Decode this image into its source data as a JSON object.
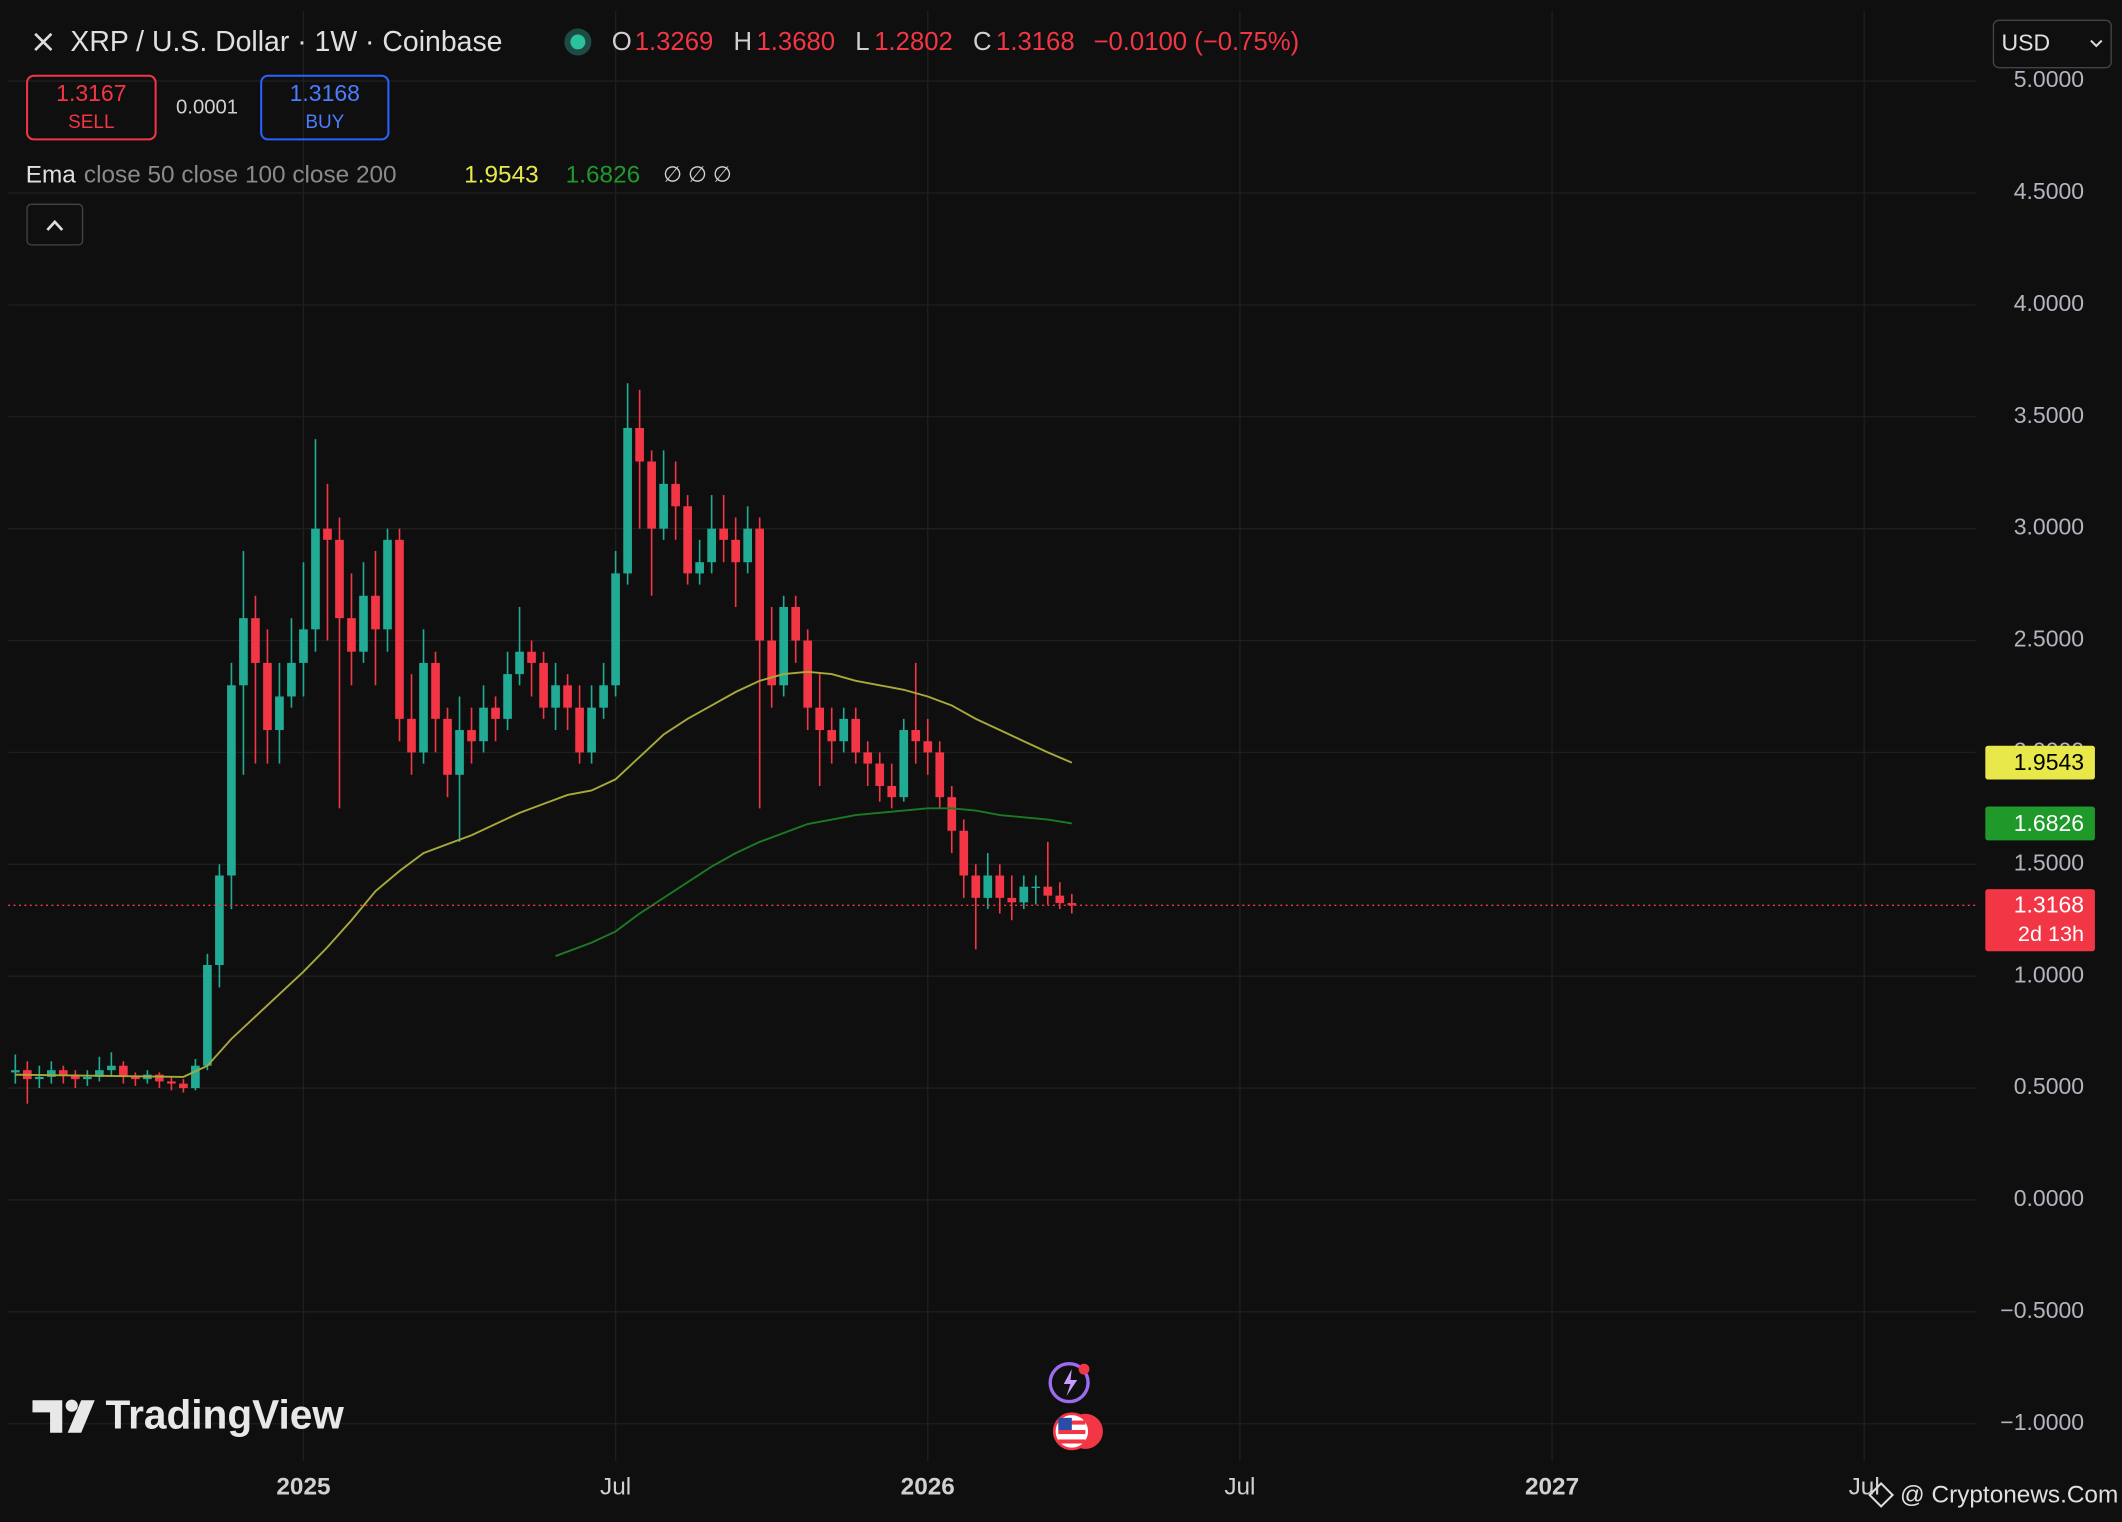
{
  "header": {
    "symbol": "XRP / U.S. Dollar · 1W · Coinbase",
    "ohlc": [
      {
        "label": "O",
        "value": "1.3269"
      },
      {
        "label": "H",
        "value": "1.3680"
      },
      {
        "label": "L",
        "value": "1.2802"
      },
      {
        "label": "C",
        "value": "1.3168"
      }
    ],
    "change": "−0.0100 (−0.75%)"
  },
  "trade": {
    "sell_price": "1.3167",
    "sell": "SELL",
    "spread": "0.0001",
    "buy_price": "1.3168",
    "buy": "BUY"
  },
  "currency": "USD",
  "indicator": {
    "name": "Ema",
    "params": "close 50 close 100 close 200",
    "empty": "∅ ∅ ∅"
  },
  "countdown": "2d 13h",
  "brand": "TradingView",
  "watermark": "@ Cryptonews.Com",
  "chart_data": {
    "type": "candlestick",
    "up_color": "#22ab94",
    "down_color": "#f23645",
    "x": [
      -24,
      -23,
      -22,
      -21,
      -20,
      -19,
      -18,
      -17,
      -16,
      -15,
      -14,
      -13,
      -12,
      -11,
      -10,
      -9,
      -8,
      -7,
      -6,
      -5,
      -4,
      -3,
      -2,
      -1,
      0,
      1,
      2,
      3,
      4,
      5,
      6,
      7,
      8,
      9,
      10,
      11,
      12,
      13,
      14,
      15,
      16,
      17,
      18,
      19,
      20,
      21,
      22,
      23,
      24,
      25,
      26,
      27,
      28,
      29,
      30,
      31,
      32,
      33,
      34,
      35,
      36,
      37,
      38,
      39,
      40,
      41,
      42,
      43,
      44,
      45,
      46,
      47,
      48,
      49,
      50,
      51,
      52,
      53,
      54,
      55,
      56,
      57,
      58,
      59,
      60,
      61,
      62,
      63,
      64
    ],
    "open": [
      0.57,
      0.58,
      0.54,
      0.55,
      0.58,
      0.56,
      0.54,
      0.55,
      0.58,
      0.6,
      0.55,
      0.54,
      0.56,
      0.53,
      0.52,
      0.5,
      0.6,
      1.05,
      1.45,
      2.3,
      2.6,
      2.4,
      2.1,
      2.25,
      2.4,
      2.55,
      3.0,
      2.95,
      2.6,
      2.45,
      2.7,
      2.55,
      2.95,
      2.15,
      2.0,
      2.4,
      2.15,
      1.9,
      2.1,
      2.05,
      2.2,
      2.15,
      2.35,
      2.45,
      2.4,
      2.2,
      2.3,
      2.2,
      2.0,
      2.2,
      2.3,
      2.8,
      3.45,
      3.3,
      3.0,
      3.2,
      3.1,
      2.8,
      2.85,
      3.0,
      2.95,
      2.85,
      3.0,
      2.5,
      2.3,
      2.65,
      2.5,
      2.2,
      2.1,
      2.05,
      2.15,
      2.0,
      1.95,
      1.85,
      1.8,
      2.1,
      2.05,
      2.0,
      1.8,
      1.65,
      1.45,
      1.35,
      1.45,
      1.35,
      1.33,
      1.4,
      1.4,
      1.36,
      1.3269
    ],
    "high": [
      0.65,
      0.62,
      0.6,
      0.62,
      0.6,
      0.58,
      0.58,
      0.64,
      0.66,
      0.62,
      0.57,
      0.58,
      0.57,
      0.55,
      0.54,
      0.63,
      1.1,
      1.5,
      2.4,
      2.9,
      2.7,
      2.55,
      2.4,
      2.6,
      2.85,
      3.4,
      3.2,
      3.05,
      2.8,
      2.85,
      2.9,
      3.0,
      3.0,
      2.35,
      2.55,
      2.45,
      2.2,
      2.25,
      2.2,
      2.3,
      2.25,
      2.45,
      2.65,
      2.5,
      2.45,
      2.4,
      2.35,
      2.3,
      2.3,
      2.4,
      2.9,
      3.65,
      3.62,
      3.35,
      3.35,
      3.3,
      3.15,
      2.95,
      3.15,
      3.15,
      3.05,
      3.1,
      3.05,
      2.65,
      2.7,
      2.7,
      2.55,
      2.35,
      2.2,
      2.2,
      2.2,
      2.05,
      2.0,
      1.95,
      2.15,
      2.4,
      2.15,
      2.05,
      1.85,
      1.7,
      1.5,
      1.55,
      1.5,
      1.45,
      1.45,
      1.45,
      1.6,
      1.42,
      1.368
    ],
    "low": [
      0.52,
      0.43,
      0.5,
      0.52,
      0.52,
      0.5,
      0.51,
      0.53,
      0.55,
      0.52,
      0.51,
      0.52,
      0.5,
      0.49,
      0.48,
      0.49,
      0.58,
      0.95,
      1.3,
      1.9,
      1.95,
      1.95,
      1.95,
      2.2,
      2.25,
      2.45,
      2.5,
      1.75,
      2.3,
      2.4,
      2.3,
      2.45,
      2.05,
      1.9,
      1.95,
      2.0,
      1.8,
      1.6,
      1.95,
      2.0,
      2.05,
      2.1,
      2.3,
      2.25,
      2.15,
      2.1,
      2.1,
      1.95,
      1.95,
      2.15,
      2.25,
      2.75,
      3.0,
      2.7,
      2.95,
      2.95,
      2.75,
      2.75,
      2.8,
      2.85,
      2.65,
      2.8,
      1.75,
      2.2,
      2.25,
      2.4,
      2.1,
      1.85,
      1.95,
      2.0,
      1.95,
      1.85,
      1.78,
      1.75,
      1.78,
      1.95,
      1.9,
      1.75,
      1.55,
      1.35,
      1.12,
      1.3,
      1.28,
      1.25,
      1.3,
      1.32,
      1.32,
      1.3,
      1.2802
    ],
    "close": [
      0.58,
      0.54,
      0.55,
      0.58,
      0.56,
      0.54,
      0.55,
      0.58,
      0.6,
      0.55,
      0.54,
      0.56,
      0.53,
      0.52,
      0.5,
      0.6,
      1.05,
      1.45,
      2.3,
      2.6,
      2.4,
      2.1,
      2.25,
      2.4,
      2.55,
      3.0,
      2.95,
      2.6,
      2.45,
      2.7,
      2.55,
      2.95,
      2.15,
      2.0,
      2.4,
      2.15,
      1.9,
      2.1,
      2.05,
      2.2,
      2.15,
      2.35,
      2.45,
      2.4,
      2.2,
      2.3,
      2.2,
      2.0,
      2.2,
      2.3,
      2.8,
      3.45,
      3.3,
      3.0,
      3.2,
      3.1,
      2.8,
      2.85,
      3.0,
      2.95,
      2.85,
      3.0,
      2.5,
      2.3,
      2.65,
      2.5,
      2.2,
      2.1,
      2.05,
      2.15,
      2.0,
      1.95,
      1.85,
      1.8,
      2.1,
      2.05,
      2.0,
      1.8,
      1.65,
      1.45,
      1.35,
      1.45,
      1.35,
      1.33,
      1.4,
      1.4,
      1.36,
      1.3269,
      1.3168
    ],
    "series": [
      {
        "color": "#e8e84a",
        "line_color": "#a9a93a",
        "label_text_color": "#000000",
        "x": [
          -24,
          -10,
          -8,
          -6,
          -4,
          -2,
          0,
          2,
          4,
          6,
          8,
          10,
          12,
          14,
          16,
          18,
          20,
          22,
          24,
          26,
          28,
          30,
          32,
          34,
          36,
          38,
          40,
          42,
          44,
          46,
          48,
          50,
          52,
          54,
          56,
          58,
          60,
          62,
          64
        ],
        "values": [
          0.56,
          0.55,
          0.6,
          0.72,
          0.82,
          0.92,
          1.02,
          1.13,
          1.25,
          1.38,
          1.47,
          1.55,
          1.59,
          1.63,
          1.68,
          1.73,
          1.77,
          1.81,
          1.83,
          1.88,
          1.98,
          2.08,
          2.15,
          2.21,
          2.27,
          2.32,
          2.35,
          2.36,
          2.35,
          2.32,
          2.3,
          2.28,
          2.25,
          2.21,
          2.15,
          2.1,
          2.05,
          2.0,
          1.9543
        ]
      },
      {
        "color": "#1f9a2a",
        "line_color": "#1c7a25",
        "label_text_color": "#ffffff",
        "x": [
          21,
          24,
          26,
          28,
          30,
          32,
          34,
          36,
          38,
          40,
          42,
          44,
          46,
          48,
          50,
          52,
          54,
          56,
          58,
          60,
          62,
          64
        ],
        "values": [
          1.09,
          1.15,
          1.2,
          1.28,
          1.35,
          1.42,
          1.49,
          1.55,
          1.6,
          1.64,
          1.68,
          1.7,
          1.72,
          1.73,
          1.74,
          1.75,
          1.75,
          1.74,
          1.72,
          1.71,
          1.7,
          1.6826
        ]
      }
    ],
    "xlim": [
      -24.6,
      139.3
    ],
    "xticks": [
      {
        "value": 0,
        "label": "2025"
      },
      {
        "value": 26,
        "label": "Jul"
      },
      {
        "value": 52,
        "label": "2026"
      },
      {
        "value": 78,
        "label": "Jul"
      },
      {
        "value": 104,
        "label": "2027"
      },
      {
        "value": 130,
        "label": "Jul"
      }
    ],
    "ylim": [
      -1.167,
      5.314
    ],
    "yticks": [
      {
        "value": -1,
        "label": "−1.0000"
      },
      {
        "value": -0.5,
        "label": "−0.5000"
      },
      {
        "value": 0,
        "label": "0.0000"
      },
      {
        "value": 0.5,
        "label": "0.5000"
      },
      {
        "value": 1,
        "label": "1.0000"
      },
      {
        "value": 1.5,
        "label": "1.5000"
      },
      {
        "value": 2,
        "label": "2.0000"
      },
      {
        "value": 2.5,
        "label": "2.5000"
      },
      {
        "value": 3,
        "label": "3.0000"
      },
      {
        "value": 3.5,
        "label": "3.5000"
      },
      {
        "value": 4,
        "label": "4.0000"
      },
      {
        "value": 4.5,
        "label": "4.5000"
      },
      {
        "value": 5,
        "label": "5.0000"
      }
    ],
    "grid": true
  }
}
